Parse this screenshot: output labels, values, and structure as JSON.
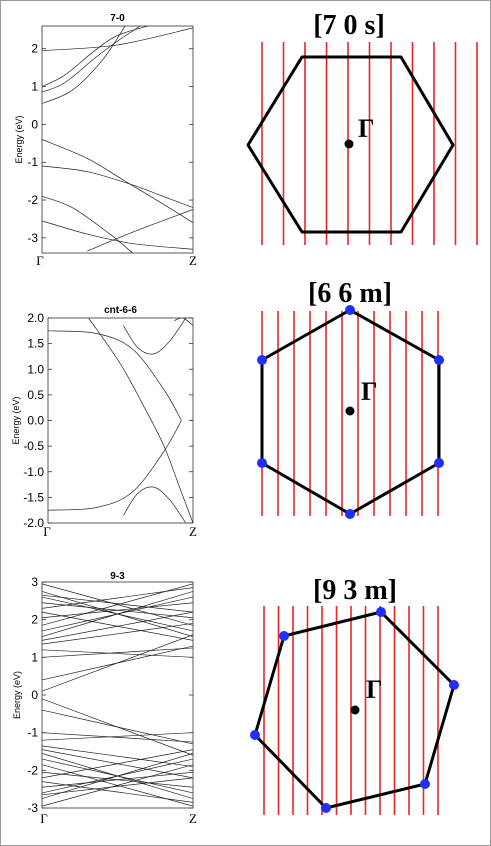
{
  "chart_data": [
    {
      "type": "line",
      "title": "7-0",
      "ylabel": "Energy (eV)",
      "ylim": [
        -3.4,
        2.6
      ],
      "yticks": [
        2,
        1,
        0,
        -1,
        -2,
        -3
      ],
      "ytick_labels": [
        "2",
        "1",
        "0",
        "-1",
        "-2",
        "-3"
      ],
      "xtick_labels": [
        "Γ",
        "Z"
      ],
      "series": [
        {
          "x": [
            0,
            0.5,
            1
          ],
          "y": [
            1.95,
            2.1,
            2.55
          ]
        },
        {
          "x": [
            0,
            0.15,
            0.35,
            0.5,
            0.7
          ],
          "y": [
            1.0,
            1.3,
            1.95,
            2.35,
            2.6
          ]
        },
        {
          "x": [
            0,
            0.15,
            0.35,
            0.5,
            0.65
          ],
          "y": [
            0.85,
            1.1,
            1.75,
            2.2,
            2.6
          ]
        },
        {
          "x": [
            0,
            0.2,
            0.4,
            0.55
          ],
          "y": [
            0.55,
            0.9,
            1.7,
            2.6
          ]
        },
        {
          "x": [
            0,
            0.3,
            0.55,
            0.8,
            1
          ],
          "y": [
            -0.4,
            -0.9,
            -1.5,
            -2.1,
            -2.6
          ]
        },
        {
          "x": [
            0,
            0.3,
            0.6,
            0.8,
            1
          ],
          "y": [
            -1.1,
            -1.25,
            -1.6,
            -1.9,
            -2.2
          ]
        },
        {
          "x": [
            0,
            0.2,
            0.45,
            0.6
          ],
          "y": [
            -1.9,
            -2.2,
            -2.9,
            -3.4
          ]
        },
        {
          "x": [
            0,
            0.3,
            0.6,
            1
          ],
          "y": [
            -2.55,
            -2.9,
            -3.15,
            -3.3
          ]
        },
        {
          "x": [
            0.3,
            0.6,
            1
          ],
          "y": [
            -3.35,
            -2.85,
            -2.25
          ]
        }
      ]
    },
    {
      "type": "line",
      "title": "cnt-6-6",
      "ylabel": "Energy (eV)",
      "ylim": [
        -2.0,
        2.0
      ],
      "yticks": [
        2.0,
        1.5,
        1.0,
        0.5,
        0.0,
        -0.5,
        -1.0,
        -1.5,
        -2.0
      ],
      "ytick_labels": [
        "2.0",
        "1.5",
        "1.0",
        "0.5",
        "0.0",
        "-0.5",
        "-1.0",
        "-1.5",
        "-2.0"
      ],
      "xtick_labels": [
        "Γ",
        "Z"
      ],
      "series": [
        {
          "x": [
            0,
            0.33,
            0.58,
            0.8,
            0.92
          ],
          "y": [
            1.75,
            1.7,
            1.4,
            0.6,
            0.0
          ]
        },
        {
          "x": [
            0,
            0.33,
            0.58,
            0.8,
            0.92
          ],
          "y": [
            -1.75,
            -1.7,
            -1.4,
            -0.6,
            0.0
          ]
        },
        {
          "x": [
            0.28,
            0.5,
            0.66,
            0.8,
            0.92,
            1
          ],
          "y": [
            2.0,
            1.1,
            0.28,
            -0.5,
            -1.4,
            -2.0
          ]
        },
        {
          "x": [
            0.52,
            0.62,
            0.73,
            0.84,
            0.95
          ],
          "y": [
            1.85,
            1.42,
            1.3,
            1.55,
            2.0
          ]
        },
        {
          "x": [
            0.52,
            0.62,
            0.73,
            0.84,
            0.95
          ],
          "y": [
            -1.85,
            -1.42,
            -1.3,
            -1.55,
            -2.0
          ]
        },
        {
          "x": [
            0.87,
            0.93,
            0.98,
            1
          ],
          "y": [
            1.95,
            2.0,
            1.9,
            1.85
          ]
        }
      ]
    },
    {
      "type": "line",
      "title": "9-3",
      "ylabel": "Energy (eV)",
      "ylim": [
        -3.0,
        3.0
      ],
      "yticks": [
        3,
        2,
        1,
        0,
        -1,
        -2,
        -3
      ],
      "ytick_labels": [
        "3",
        "2",
        "1",
        "0",
        "-1",
        "-2",
        "-3"
      ],
      "xtick_labels": [
        "Γ",
        "Z"
      ],
      "series": [
        {
          "x": [
            0,
            1
          ],
          "y": [
            0.1,
            1.6
          ]
        },
        {
          "x": [
            0,
            1
          ],
          "y": [
            -0.1,
            -1.6
          ]
        },
        {
          "x": [
            0,
            1
          ],
          "y": [
            0.4,
            1.3
          ]
        },
        {
          "x": [
            0,
            1
          ],
          "y": [
            -0.4,
            -1.3
          ]
        },
        {
          "x": [
            0,
            1
          ],
          "y": [
            1.2,
            1.0
          ]
        },
        {
          "x": [
            0,
            1
          ],
          "y": [
            -1.2,
            -1.0
          ]
        },
        {
          "x": [
            0,
            1
          ],
          "y": [
            1.45,
            2.2
          ]
        },
        {
          "x": [
            0,
            1
          ],
          "y": [
            2.2,
            1.45
          ]
        },
        {
          "x": [
            0,
            1
          ],
          "y": [
            -1.45,
            -2.2
          ]
        },
        {
          "x": [
            0,
            1
          ],
          "y": [
            -2.2,
            -1.45
          ]
        },
        {
          "x": [
            0,
            1
          ],
          "y": [
            1.7,
            2.6
          ]
        },
        {
          "x": [
            0,
            1
          ],
          "y": [
            2.6,
            1.7
          ]
        },
        {
          "x": [
            0,
            1
          ],
          "y": [
            -1.7,
            -2.6
          ]
        },
        {
          "x": [
            0,
            1
          ],
          "y": [
            -2.6,
            -1.7
          ]
        },
        {
          "x": [
            0,
            1
          ],
          "y": [
            1.85,
            2.95
          ]
        },
        {
          "x": [
            0,
            1
          ],
          "y": [
            2.95,
            1.85
          ]
        },
        {
          "x": [
            0,
            1
          ],
          "y": [
            -1.85,
            -2.95
          ]
        },
        {
          "x": [
            0,
            1
          ],
          "y": [
            -2.95,
            -1.85
          ]
        },
        {
          "x": [
            0,
            1
          ],
          "y": [
            2.05,
            2.45
          ]
        },
        {
          "x": [
            0,
            1
          ],
          "y": [
            2.45,
            2.05
          ]
        },
        {
          "x": [
            0,
            1
          ],
          "y": [
            -2.05,
            -2.45
          ]
        },
        {
          "x": [
            0,
            1
          ],
          "y": [
            -2.45,
            -2.05
          ]
        },
        {
          "x": [
            0,
            1
          ],
          "y": [
            1.55,
            2.75
          ]
        },
        {
          "x": [
            0,
            1
          ],
          "y": [
            2.75,
            1.55
          ]
        },
        {
          "x": [
            0,
            1
          ],
          "y": [
            -1.55,
            -2.75
          ]
        },
        {
          "x": [
            0,
            1
          ],
          "y": [
            -2.75,
            -1.55
          ]
        },
        {
          "x": [
            0,
            1
          ],
          "y": [
            2.3,
            2.85
          ]
        },
        {
          "x": [
            0,
            1
          ],
          "y": [
            -2.3,
            -2.85
          ]
        },
        {
          "x": [
            0,
            1
          ],
          "y": [
            1.35,
            1.9
          ]
        },
        {
          "x": [
            0,
            1
          ],
          "y": [
            -1.35,
            -1.9
          ]
        },
        {
          "x": [
            0,
            1
          ],
          "y": [
            2.65,
            2.2
          ]
        },
        {
          "x": [
            0,
            1
          ],
          "y": [
            -2.65,
            -2.2
          ]
        },
        {
          "x": [
            0,
            1
          ],
          "y": [
            1.0,
            1.25
          ]
        },
        {
          "x": [
            0,
            1
          ],
          "y": [
            -1.0,
            -1.25
          ]
        }
      ]
    }
  ],
  "bz_panels": [
    {
      "title": "[7 0 s]",
      "gamma_label": "Γ",
      "line_count": 11,
      "corner_dots": false
    },
    {
      "title": "[6 6 m]",
      "gamma_label": "Γ",
      "line_count": 12,
      "corner_dots": true
    },
    {
      "title": "[9 3 m]",
      "gamma_label": "Γ",
      "line_count": 13,
      "corner_dots": true
    }
  ],
  "colors": {
    "band_line": "#222222",
    "cut_line": "#e8262a",
    "zone_edge": "#000000",
    "corner_dot": "#1f2fff",
    "gamma_dot": "#000000"
  }
}
